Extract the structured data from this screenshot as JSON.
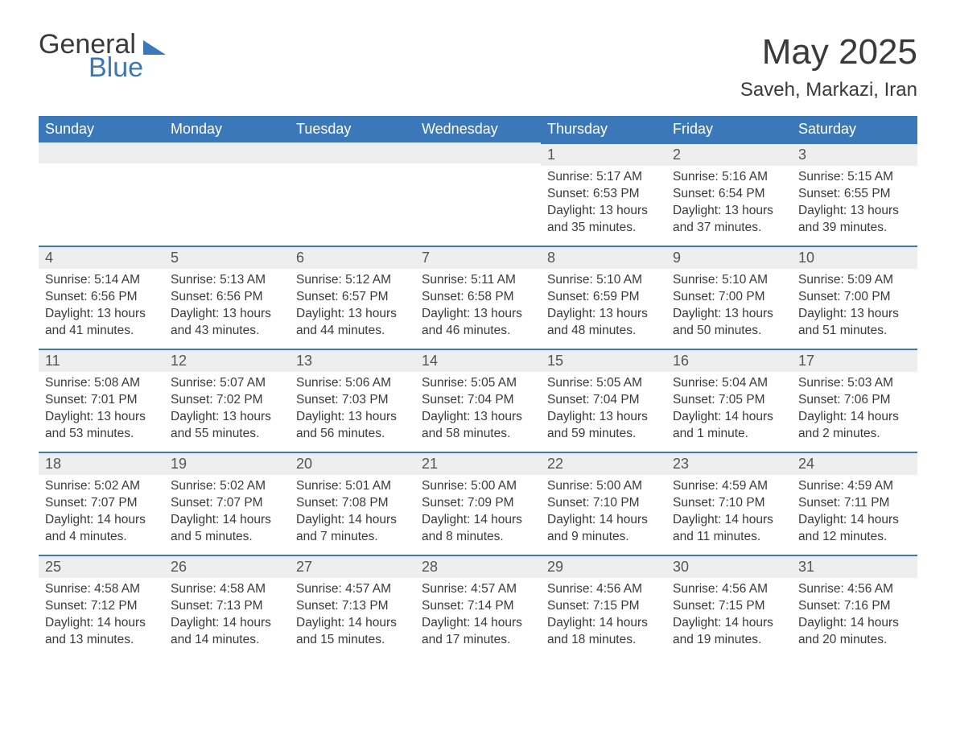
{
  "logo": {
    "word1": "General",
    "word2": "Blue"
  },
  "header": {
    "title": "May 2025",
    "subtitle": "Saveh, Markazi, Iran"
  },
  "weekdays": [
    "Sunday",
    "Monday",
    "Tuesday",
    "Wednesday",
    "Thursday",
    "Friday",
    "Saturday"
  ],
  "colors": {
    "header_bg": "#3a78b9",
    "header_text": "#ffffff",
    "daynum_bg": "#eeeeee",
    "row_border": "#3a78b9",
    "body_text": "#3a3a3a",
    "page_bg": "#ffffff"
  },
  "typography": {
    "title_fontsize": 44,
    "subtitle_fontsize": 24,
    "weekday_fontsize": 18,
    "daynum_fontsize": 18,
    "content_fontsize": 15.5,
    "font_family": "Arial"
  },
  "layout": {
    "columns": 7,
    "rows": 5,
    "first_day_column_index": 4
  },
  "days": [
    {
      "n": "1",
      "sunrise": "5:17 AM",
      "sunset": "6:53 PM",
      "daylight": "13 hours and 35 minutes."
    },
    {
      "n": "2",
      "sunrise": "5:16 AM",
      "sunset": "6:54 PM",
      "daylight": "13 hours and 37 minutes."
    },
    {
      "n": "3",
      "sunrise": "5:15 AM",
      "sunset": "6:55 PM",
      "daylight": "13 hours and 39 minutes."
    },
    {
      "n": "4",
      "sunrise": "5:14 AM",
      "sunset": "6:56 PM",
      "daylight": "13 hours and 41 minutes."
    },
    {
      "n": "5",
      "sunrise": "5:13 AM",
      "sunset": "6:56 PM",
      "daylight": "13 hours and 43 minutes."
    },
    {
      "n": "6",
      "sunrise": "5:12 AM",
      "sunset": "6:57 PM",
      "daylight": "13 hours and 44 minutes."
    },
    {
      "n": "7",
      "sunrise": "5:11 AM",
      "sunset": "6:58 PM",
      "daylight": "13 hours and 46 minutes."
    },
    {
      "n": "8",
      "sunrise": "5:10 AM",
      "sunset": "6:59 PM",
      "daylight": "13 hours and 48 minutes."
    },
    {
      "n": "9",
      "sunrise": "5:10 AM",
      "sunset": "7:00 PM",
      "daylight": "13 hours and 50 minutes."
    },
    {
      "n": "10",
      "sunrise": "5:09 AM",
      "sunset": "7:00 PM",
      "daylight": "13 hours and 51 minutes."
    },
    {
      "n": "11",
      "sunrise": "5:08 AM",
      "sunset": "7:01 PM",
      "daylight": "13 hours and 53 minutes."
    },
    {
      "n": "12",
      "sunrise": "5:07 AM",
      "sunset": "7:02 PM",
      "daylight": "13 hours and 55 minutes."
    },
    {
      "n": "13",
      "sunrise": "5:06 AM",
      "sunset": "7:03 PM",
      "daylight": "13 hours and 56 minutes."
    },
    {
      "n": "14",
      "sunrise": "5:05 AM",
      "sunset": "7:04 PM",
      "daylight": "13 hours and 58 minutes."
    },
    {
      "n": "15",
      "sunrise": "5:05 AM",
      "sunset": "7:04 PM",
      "daylight": "13 hours and 59 minutes."
    },
    {
      "n": "16",
      "sunrise": "5:04 AM",
      "sunset": "7:05 PM",
      "daylight": "14 hours and 1 minute."
    },
    {
      "n": "17",
      "sunrise": "5:03 AM",
      "sunset": "7:06 PM",
      "daylight": "14 hours and 2 minutes."
    },
    {
      "n": "18",
      "sunrise": "5:02 AM",
      "sunset": "7:07 PM",
      "daylight": "14 hours and 4 minutes."
    },
    {
      "n": "19",
      "sunrise": "5:02 AM",
      "sunset": "7:07 PM",
      "daylight": "14 hours and 5 minutes."
    },
    {
      "n": "20",
      "sunrise": "5:01 AM",
      "sunset": "7:08 PM",
      "daylight": "14 hours and 7 minutes."
    },
    {
      "n": "21",
      "sunrise": "5:00 AM",
      "sunset": "7:09 PM",
      "daylight": "14 hours and 8 minutes."
    },
    {
      "n": "22",
      "sunrise": "5:00 AM",
      "sunset": "7:10 PM",
      "daylight": "14 hours and 9 minutes."
    },
    {
      "n": "23",
      "sunrise": "4:59 AM",
      "sunset": "7:10 PM",
      "daylight": "14 hours and 11 minutes."
    },
    {
      "n": "24",
      "sunrise": "4:59 AM",
      "sunset": "7:11 PM",
      "daylight": "14 hours and 12 minutes."
    },
    {
      "n": "25",
      "sunrise": "4:58 AM",
      "sunset": "7:12 PM",
      "daylight": "14 hours and 13 minutes."
    },
    {
      "n": "26",
      "sunrise": "4:58 AM",
      "sunset": "7:13 PM",
      "daylight": "14 hours and 14 minutes."
    },
    {
      "n": "27",
      "sunrise": "4:57 AM",
      "sunset": "7:13 PM",
      "daylight": "14 hours and 15 minutes."
    },
    {
      "n": "28",
      "sunrise": "4:57 AM",
      "sunset": "7:14 PM",
      "daylight": "14 hours and 17 minutes."
    },
    {
      "n": "29",
      "sunrise": "4:56 AM",
      "sunset": "7:15 PM",
      "daylight": "14 hours and 18 minutes."
    },
    {
      "n": "30",
      "sunrise": "4:56 AM",
      "sunset": "7:15 PM",
      "daylight": "14 hours and 19 minutes."
    },
    {
      "n": "31",
      "sunrise": "4:56 AM",
      "sunset": "7:16 PM",
      "daylight": "14 hours and 20 minutes."
    }
  ],
  "labels": {
    "sunrise": "Sunrise:",
    "sunset": "Sunset:",
    "daylight": "Daylight:"
  }
}
